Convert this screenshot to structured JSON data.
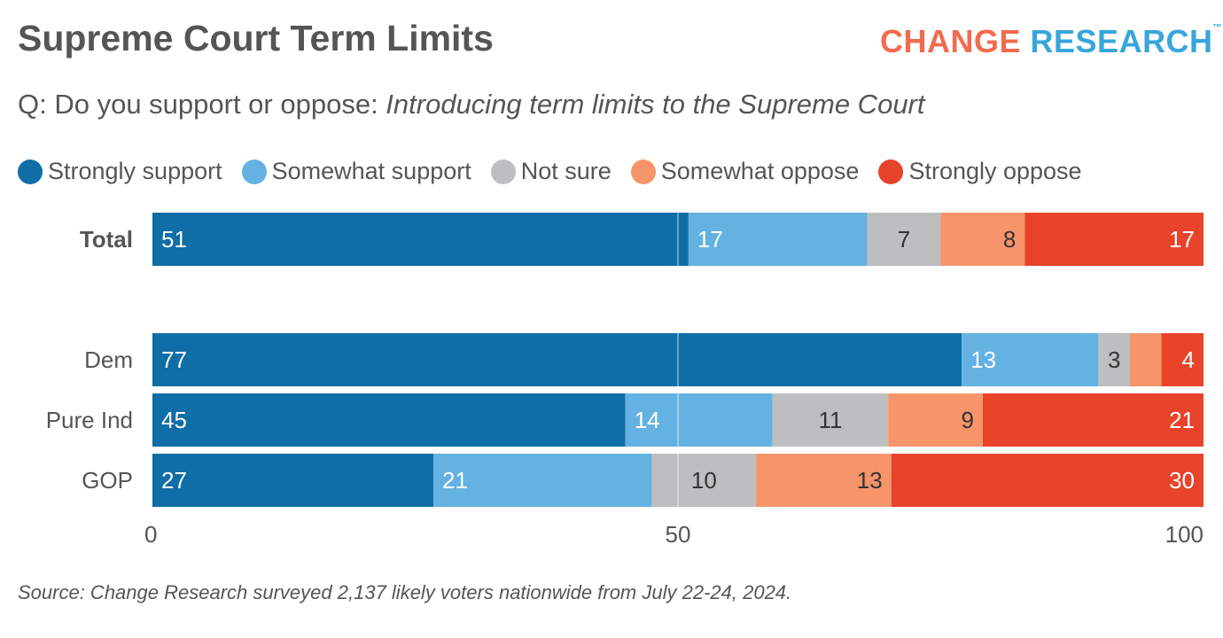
{
  "title": "Supreme Court Term Limits",
  "logo": {
    "part1": "CHANGE",
    "part2": "RESEARCH",
    "tm": "™"
  },
  "subtitle": {
    "prefix": "Q: Do you support or oppose: ",
    "question": "Introducing term limits to the Supreme Court"
  },
  "source": "Source: Change Research surveyed 2,137 likely voters nationwide from July 22-24, 2024.",
  "chart_data": {
    "type": "bar",
    "orientation": "horizontal-stacked",
    "categories": [
      "Total",
      "Dem",
      "Pure Ind",
      "GOP"
    ],
    "series": [
      {
        "name": "Strongly support",
        "color": "#0f6ea8",
        "values": [
          51,
          77,
          45,
          27
        ]
      },
      {
        "name": "Somewhat support",
        "color": "#64b2e2",
        "values": [
          17,
          13,
          14,
          21
        ]
      },
      {
        "name": "Not sure",
        "color": "#bdbec0",
        "values": [
          7,
          3,
          11,
          10
        ]
      },
      {
        "name": "Somewhat oppose",
        "color": "#f7946a",
        "values": [
          8,
          3,
          9,
          13
        ]
      },
      {
        "name": "Strongly oppose",
        "color": "#e8432b",
        "values": [
          17,
          4,
          21,
          30
        ]
      }
    ],
    "hidden_labels": [
      [
        1,
        3
      ]
    ],
    "xlim": [
      0,
      100
    ],
    "xticks": [
      0,
      50,
      100
    ],
    "legend": "top"
  }
}
